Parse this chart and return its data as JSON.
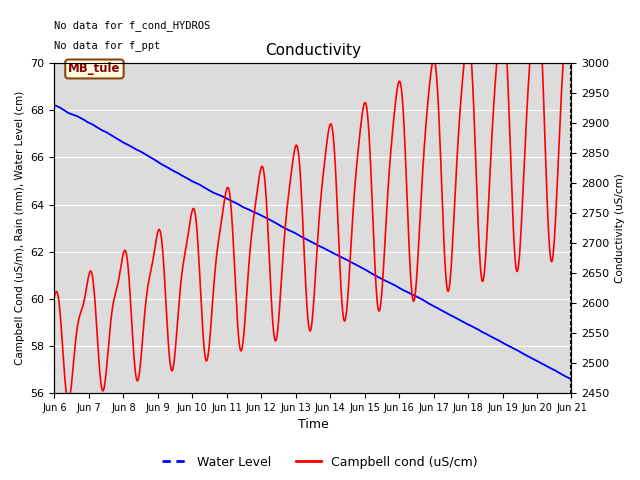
{
  "title": "Conductivity",
  "xlabel": "Time",
  "ylabel_left": "Campbell Cond (uS/m), Rain (mm), Water Level (cm)",
  "ylabel_right": "Conductivity (uS/cm)",
  "ylim_left": [
    56,
    70
  ],
  "ylim_right": [
    2450,
    3000
  ],
  "yticks_left": [
    56,
    58,
    60,
    62,
    64,
    66,
    68,
    70
  ],
  "yticks_right": [
    2450,
    2500,
    2550,
    2600,
    2650,
    2700,
    2750,
    2800,
    2850,
    2900,
    2950,
    3000
  ],
  "text_no_data": [
    "No data for f_cond_HYDROS",
    "No data for f_ppt"
  ],
  "legend_label": "MB_tule",
  "legend_entries": [
    "Water Level",
    "Campbell cond (uS/cm)"
  ],
  "x_tick_days": [
    6,
    7,
    8,
    9,
    10,
    11,
    12,
    13,
    14,
    15,
    16,
    17,
    18,
    19,
    20,
    21
  ],
  "x_tick_labels": [
    "Jun 6",
    "Jun 7",
    "Jun 8",
    "Jun 9",
    "Jun 10",
    "Jun 11",
    "Jun 12",
    "Jun 13",
    "Jun 14",
    "Jun 15",
    "Jun 16",
    "Jun 17",
    "Jun 18",
    "Jun 19",
    "Jun 20",
    "Jun 21"
  ],
  "plot_bg_color": "#dcdcdc",
  "fig_size": [
    6.4,
    4.8
  ],
  "dpi": 100
}
